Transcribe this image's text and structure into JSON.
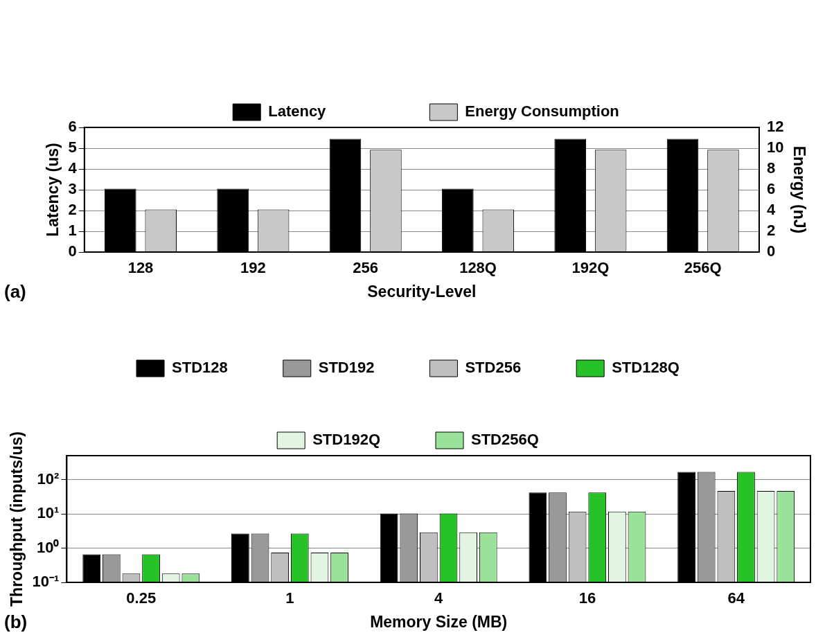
{
  "chart_data": [
    {
      "type": "bar",
      "categories": [
        "128",
        "192",
        "256",
        "128Q",
        "192Q",
        "256Q"
      ],
      "xlabel": "Security-Level",
      "ylabel": "Latency (us)",
      "y2label": "Energy (nJ)",
      "series": [
        {
          "name": "Latency",
          "color": "#000000",
          "values": [
            3.05,
            3.05,
            5.45,
            3.05,
            5.45,
            5.45
          ]
        },
        {
          "name": "Energy Consumption",
          "color": "#c8c8c8",
          "axis": "y2",
          "values": [
            4.1,
            4.1,
            9.85,
            4.1,
            9.85,
            9.85
          ]
        }
      ],
      "ylim": [
        0,
        6
      ],
      "yticks": [
        0,
        1,
        2,
        3,
        4,
        5,
        6
      ],
      "y2lim": [
        0,
        12
      ],
      "y2ticks": [
        0,
        2,
        4,
        6,
        8,
        10,
        12
      ],
      "grid": "y",
      "legend": "top",
      "annotations": [
        "(a)"
      ]
    },
    {
      "type": "bar",
      "categories": [
        "0.25",
        "1",
        "4",
        "16",
        "64"
      ],
      "xlabel": "Memory Size (MB)",
      "ylabel": "Throughput (inputs/us)",
      "series": [
        {
          "name": "STD128",
          "color": "#000000",
          "values": [
            0.66,
            2.65,
            10.3,
            42,
            167
          ]
        },
        {
          "name": "STD192",
          "color": "#999999",
          "values": [
            0.66,
            2.65,
            10.3,
            42,
            167
          ]
        },
        {
          "name": "STD256",
          "color": "#bfbfbf",
          "values": [
            0.18,
            0.74,
            2.9,
            11.6,
            46.5
          ]
        },
        {
          "name": "STD128Q",
          "color": "#27c227",
          "values": [
            0.66,
            2.65,
            10.3,
            42,
            167
          ]
        },
        {
          "name": "STD192Q",
          "color": "#e2f5e2",
          "values": [
            0.18,
            0.74,
            2.9,
            11.6,
            46.5
          ]
        },
        {
          "name": "STD256Q",
          "color": "#9be39b",
          "values": [
            0.18,
            0.74,
            2.9,
            11.6,
            46.5
          ]
        }
      ],
      "log": "y",
      "ylim": [
        0.1,
        500
      ],
      "yticks": [
        {
          "value": 0.1,
          "label": "10⁻¹"
        },
        {
          "value": 1,
          "label": "10⁰"
        },
        {
          "value": 10,
          "label": "10¹"
        },
        {
          "value": 100,
          "label": "10²"
        }
      ],
      "grid": "y",
      "legend": "top",
      "annotations": [
        "(b)"
      ]
    }
  ]
}
